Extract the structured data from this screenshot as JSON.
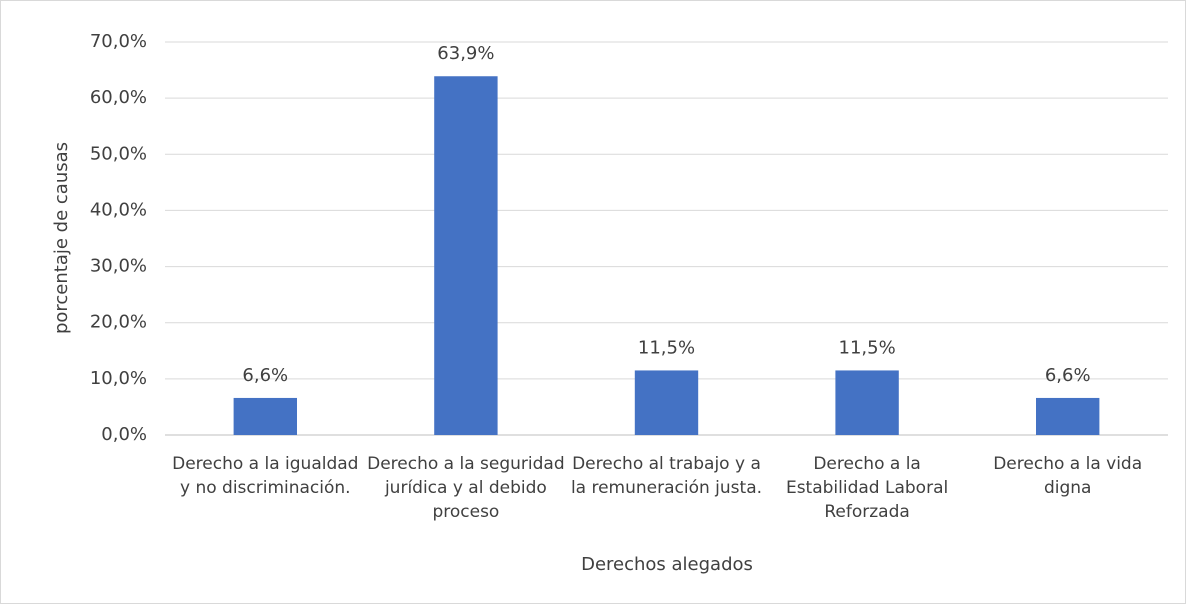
{
  "chart_data": {
    "type": "bar",
    "xlabel": "Derechos alegados",
    "ylabel": "porcentaje de causas",
    "categories": [
      "Derecho a la igualdad y no discriminación.",
      "Derecho a la seguridad jurídica y al debido proceso",
      "Derecho al trabajo y a la remuneración justa.",
      "Derecho a la Estabilidad Laboral Reforzada",
      "Derecho a la vida digna"
    ],
    "values": [
      6.6,
      63.9,
      11.5,
      11.5,
      6.6
    ],
    "value_labels": [
      "6,6%",
      "63,9%",
      "11,5%",
      "11,5%",
      "6,6%"
    ],
    "color": "#4472c4",
    "ylim": [
      0,
      70
    ],
    "yticks": [
      {
        "value": 0,
        "label": "0,0%"
      },
      {
        "value": 10,
        "label": "10,0%"
      },
      {
        "value": 20,
        "label": "20,0%"
      },
      {
        "value": 30,
        "label": "30,0%"
      },
      {
        "value": 40,
        "label": "40,0%"
      },
      {
        "value": 50,
        "label": "50,0%"
      },
      {
        "value": 60,
        "label": "60,0%"
      },
      {
        "value": 70,
        "label": "70,0%"
      }
    ],
    "grid": true
  }
}
